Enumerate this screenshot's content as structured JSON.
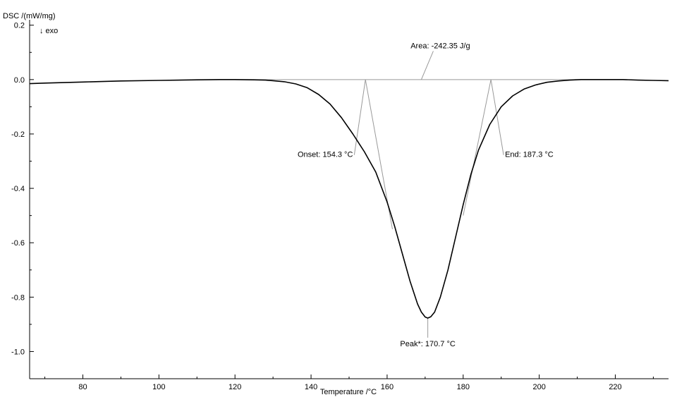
{
  "chart_data": {
    "type": "line",
    "ylabel": "DSC /(mW/mg)",
    "ylabel_note": "↓ exo",
    "xlabel": "Temperature /°C",
    "xlim": [
      66,
      234
    ],
    "ylim": [
      -1.1,
      0.22
    ],
    "x_ticks": [
      80,
      100,
      120,
      140,
      160,
      180,
      200,
      220
    ],
    "y_ticks": [
      0.2,
      0.0,
      -0.2,
      -0.4,
      -0.6,
      -0.8,
      -1.0
    ],
    "y_tick_labels": [
      "0.2",
      "0.0",
      "-0.2",
      "-0.4",
      "-0.6",
      "-0.8",
      "-1.0"
    ],
    "grid": false,
    "series": [
      {
        "color": "#000000",
        "x": [
          66,
          70,
          80,
          90,
          100,
          110,
          116,
          120,
          125,
          128,
          130,
          133,
          136,
          139,
          142,
          145,
          148,
          151,
          154,
          157,
          160,
          162,
          164,
          166,
          168,
          169,
          170,
          170.7,
          171.5,
          172.5,
          174,
          176,
          178,
          180,
          182,
          184,
          187,
          190,
          193,
          196,
          199,
          202,
          205,
          208,
          211,
          214,
          218,
          222,
          226,
          230,
          234
        ],
        "y": [
          -0.015,
          -0.013,
          -0.009,
          -0.005,
          -0.003,
          -0.001,
          0.0,
          0.0,
          -0.001,
          -0.002,
          -0.004,
          -0.008,
          -0.016,
          -0.03,
          -0.055,
          -0.09,
          -0.14,
          -0.2,
          -0.265,
          -0.34,
          -0.45,
          -0.54,
          -0.64,
          -0.74,
          -0.825,
          -0.855,
          -0.873,
          -0.877,
          -0.872,
          -0.855,
          -0.8,
          -0.7,
          -0.58,
          -0.46,
          -0.35,
          -0.26,
          -0.165,
          -0.1,
          -0.06,
          -0.035,
          -0.02,
          -0.01,
          -0.005,
          -0.002,
          0.0,
          0.0,
          0.0,
          0.0,
          -0.002,
          -0.003,
          -0.004
        ]
      }
    ],
    "baseline": {
      "x": [
        116,
        222
      ],
      "y": 0.0,
      "color": "#999999"
    },
    "annotations": [
      {
        "label": "Area:",
        "value": "-242.35 J/g",
        "point": [
          169.0,
          0.0
        ],
        "text_at": [
          174,
          0.115
        ]
      },
      {
        "label": "Onset:",
        "value": "154.3 °C",
        "point": [
          154.3,
          0.0
        ],
        "text_at": [
          151,
          -0.285
        ]
      },
      {
        "label": "End:",
        "value": "187.3 °C",
        "point": [
          187.3,
          0.0
        ],
        "text_at": [
          191,
          -0.285
        ]
      },
      {
        "label": "Peak*:",
        "value": "170.7 °C",
        "point": [
          170.7,
          -0.877
        ],
        "text_at": [
          170.7,
          -0.975
        ]
      }
    ],
    "tangents": [
      {
        "from": [
          154.3,
          0.0
        ],
        "to": [
          161.4,
          -0.55
        ]
      },
      {
        "from": [
          187.3,
          0.0
        ],
        "to": [
          180.0,
          -0.5
        ]
      }
    ]
  }
}
